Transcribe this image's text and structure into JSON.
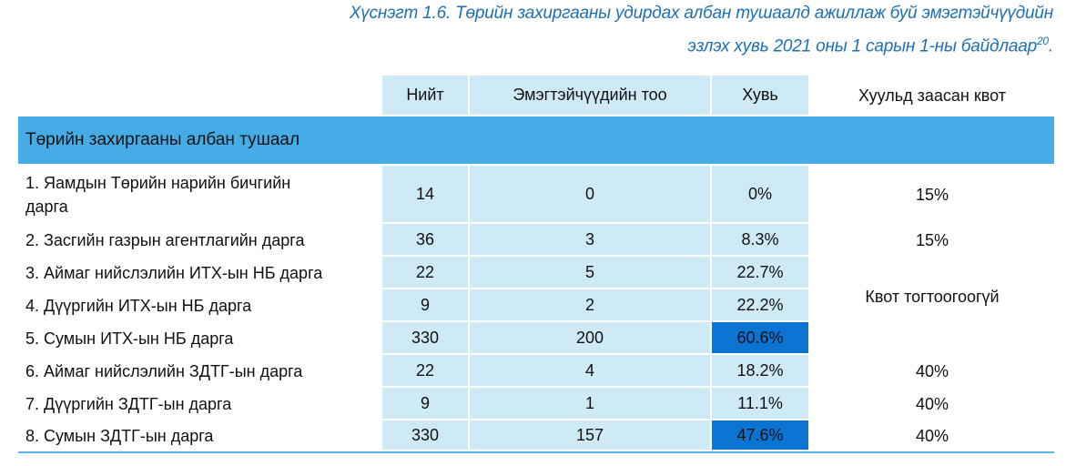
{
  "title": {
    "line1": "Хүснэгт 1.6. Төрийн захиргааны удирдах албан тушаалд ажиллаж буй эмэгтэйчүүдийн",
    "line2": "эзлэх хувь 2021 оны 1 сарын 1-ны байдлаар",
    "footnote": "20",
    "end": "."
  },
  "headers": [
    "Нийт",
    "Эмэгтэйчүүдийн тоо",
    "Хувь",
    "Хуульд заасан квот"
  ],
  "section": "Төрийн захиргааны албан тушаал",
  "rows": [
    {
      "label": "1. Яамдын Төрийн нарийн бичгийн дарга",
      "total": "14",
      "women": "0",
      "pct": "0%"
    },
    {
      "label": "2. Засгийн газрын агентлагийн дарга",
      "total": "36",
      "women": "3",
      "pct": "8.3%"
    },
    {
      "label": "3. Аймаг нийслэлийн ИТХ-ын НБ дарга",
      "total": "22",
      "women": "5",
      "pct": "22.7%"
    },
    {
      "label": "4. Дүүргийн ИТХ-ын НБ дарга",
      "total": "9",
      "women": "2",
      "pct": "22.2%"
    },
    {
      "label": "5. Сумын ИТХ-ын НБ дарга",
      "total": "330",
      "women": "200",
      "pct": "60.6%",
      "highlight": true
    },
    {
      "label": "6. Аймаг нийслэлийн ЗДТГ-ын дарга",
      "total": "22",
      "women": "4",
      "pct": "18.2%"
    },
    {
      "label": "7. Дүүргийн ЗДТГ-ын дарга",
      "total": "9",
      "women": "1",
      "pct": "11.1%"
    },
    {
      "label": "8. Сумын ЗДТГ-ын дарга",
      "total": "330",
      "women": "157",
      "pct": "47.6%",
      "highlight": true
    }
  ],
  "quotas": [
    "15%",
    "15%",
    "Квот тогтоогоогүй",
    "40%",
    "40%",
    "40%"
  ],
  "colors": {
    "light": "#cfeaf7",
    "band": "#45ace6",
    "highlight": "#0b74d2",
    "title": "#1f6fb5"
  }
}
